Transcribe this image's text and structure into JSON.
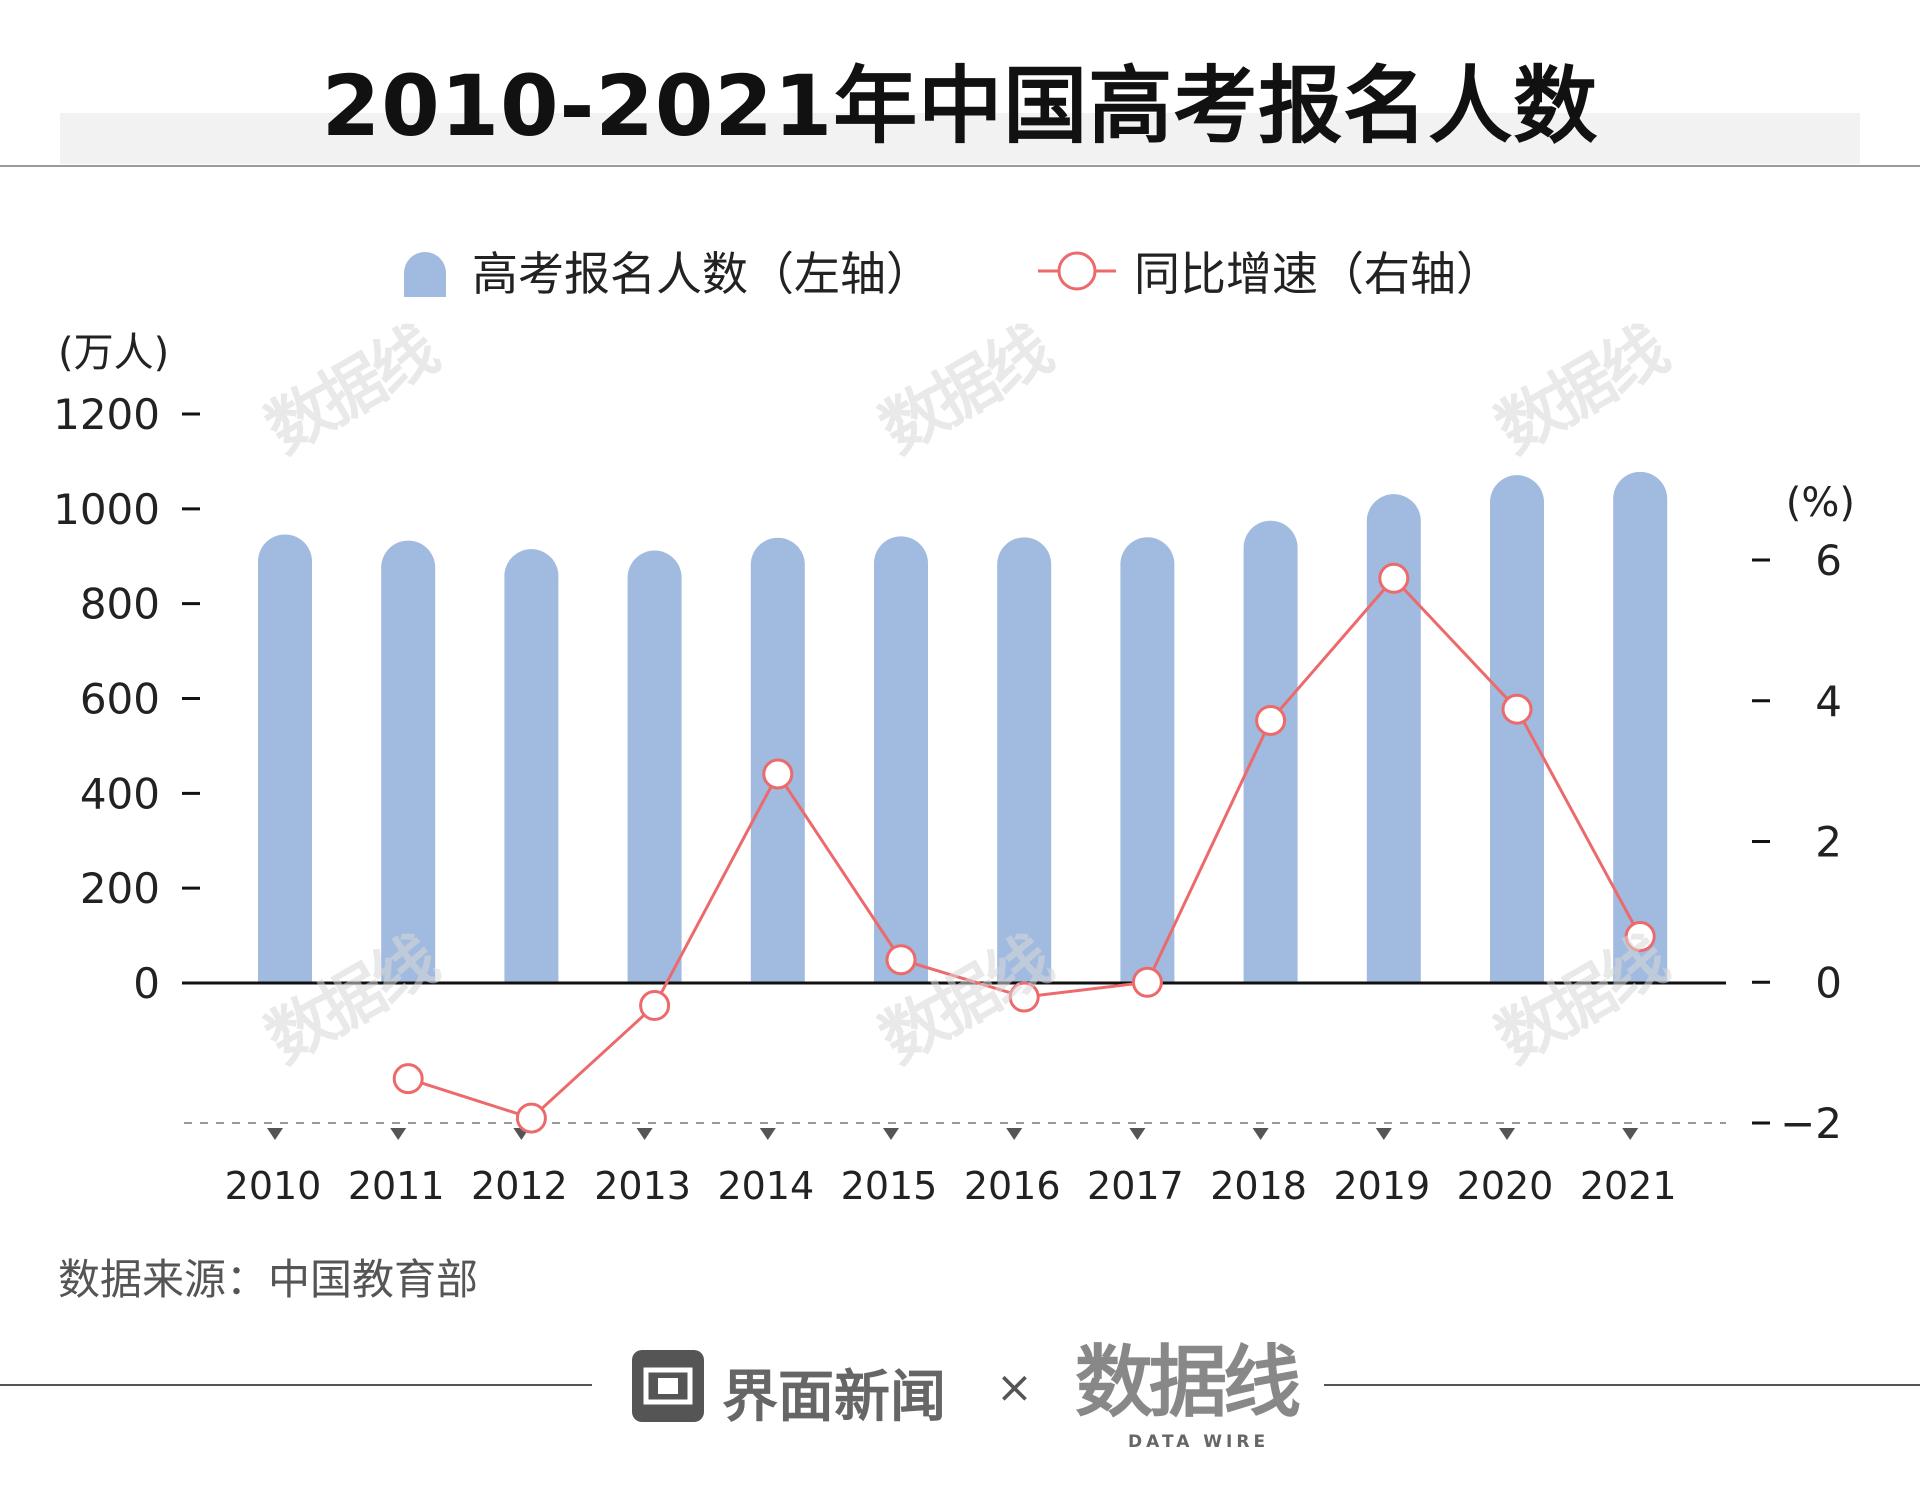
{
  "title": "2010-2021年中国高考报名人数",
  "legend": {
    "bar_label": "高考报名人数（左轴）",
    "line_label": "同比增速（右轴）"
  },
  "source": "数据来源：中国教育部",
  "footer": {
    "brand_name": "界面新闻",
    "times": "×",
    "partner_name": "数据线",
    "partner_sub": "DATA WIRE"
  },
  "watermark": "数据线",
  "colors": {
    "bar": "#a1badf",
    "line": "#ec6a6c",
    "axis": "#111111"
  },
  "chart_data": {
    "type": "bar+line",
    "title": "2010-2021年中国高考报名人数",
    "categories": [
      "2010",
      "2011",
      "2012",
      "2013",
      "2014",
      "2015",
      "2016",
      "2017",
      "2018",
      "2019",
      "2020",
      "2021"
    ],
    "series": [
      {
        "name": "高考报名人数（左轴）",
        "type": "bar",
        "axis": "left",
        "values": [
          946,
          933,
          915,
          912,
          939,
          942,
          940,
          940,
          975,
          1031,
          1071,
          1078
        ]
      },
      {
        "name": "同比增速（右轴）",
        "type": "line",
        "axis": "right",
        "values": [
          null,
          -1.37,
          -1.93,
          -0.33,
          2.96,
          0.32,
          -0.21,
          0.0,
          3.72,
          5.74,
          3.88,
          0.65
        ]
      }
    ],
    "left_axis": {
      "label": "(万人)",
      "ticks": [
        0,
        200,
        400,
        600,
        800,
        1000,
        1200
      ],
      "range": [
        0,
        1200
      ]
    },
    "right_axis": {
      "label": "(%)",
      "ticks": [
        -2,
        0,
        2,
        4,
        6
      ],
      "range": [
        -2,
        6
      ]
    },
    "legend_position": "top-center",
    "grid": false
  }
}
